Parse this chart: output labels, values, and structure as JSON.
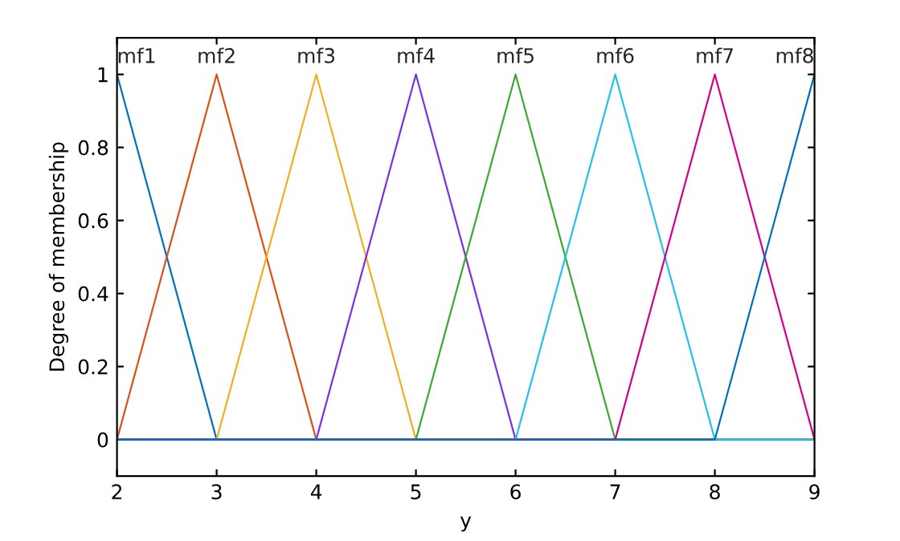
{
  "chart_data": {
    "type": "line",
    "xlabel": "y",
    "ylabel": "Degree of membership",
    "xlim": [
      2,
      9
    ],
    "ylim": [
      -0.1,
      1.1
    ],
    "xticks": [
      2,
      3,
      4,
      5,
      6,
      7,
      8,
      9
    ],
    "yticks": [
      0,
      0.2,
      0.4,
      0.6,
      0.8,
      1
    ],
    "grid": false,
    "legend": false,
    "marker": "none",
    "line_style": "solid",
    "series": [
      {
        "name": "mf1",
        "color": "#0072bd",
        "x": [
          2,
          3,
          9
        ],
        "values": [
          1,
          0,
          0
        ]
      },
      {
        "name": "mf2",
        "color": "#d95319",
        "x": [
          2,
          2,
          3,
          4,
          9
        ],
        "values": [
          0,
          0,
          1,
          0,
          0
        ]
      },
      {
        "name": "mf3",
        "color": "#edb120",
        "x": [
          2,
          3,
          4,
          5,
          9
        ],
        "values": [
          0,
          0,
          1,
          0,
          0
        ]
      },
      {
        "name": "mf4",
        "color": "#7e2fe0",
        "x": [
          2,
          4,
          5,
          6,
          9
        ],
        "values": [
          0,
          0,
          1,
          0,
          0
        ]
      },
      {
        "name": "mf5",
        "color": "#3aaa35",
        "x": [
          2,
          5,
          6,
          7,
          9
        ],
        "values": [
          0,
          0,
          1,
          0,
          0
        ]
      },
      {
        "name": "mf6",
        "color": "#27c0e8",
        "x": [
          2,
          6,
          7,
          8,
          9
        ],
        "values": [
          0,
          0,
          1,
          0,
          0
        ]
      },
      {
        "name": "mf7",
        "color": "#d1008a",
        "x": [
          2,
          7,
          8,
          9,
          9
        ],
        "values": [
          0,
          0,
          1,
          0,
          0
        ]
      },
      {
        "name": "mf8",
        "color": "#0072bd",
        "x": [
          2,
          8,
          9
        ],
        "values": [
          0,
          0,
          1
        ]
      }
    ]
  }
}
